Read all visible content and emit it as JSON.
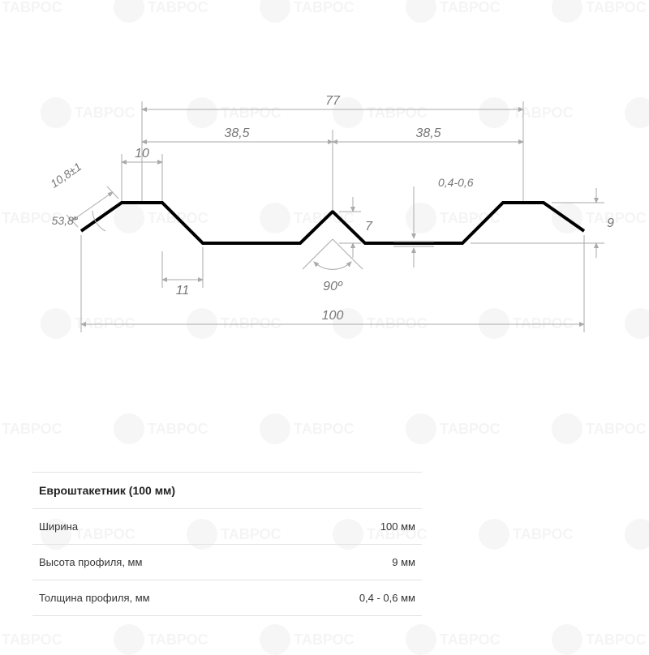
{
  "title": "Евроштакетник (100 мм)",
  "specs": [
    {
      "label": "Ширина",
      "value": "100 мм"
    },
    {
      "label": "Высота профиля, мм",
      "value": "9 мм"
    },
    {
      "label": "Толщина профиля, мм",
      "value": "0,4 - 0,6 мм"
    }
  ],
  "dimensions": {
    "total_width": "100",
    "top_span": "77",
    "half_span_left": "38,5",
    "half_span_right": "38,5",
    "flat_top": "10",
    "lower_offset": "11",
    "edge_len": "10,8±1",
    "edge_angle": "53,8°",
    "center_peak_h": "7",
    "center_angle": "90º",
    "profile_h": "9",
    "thickness": "0,4-0,6"
  },
  "style": {
    "profile_color": "#000000",
    "dim_color": "#aaaaaa",
    "dim_text_color": "#777777",
    "background": "#ffffff",
    "table_border": "#e3e3e3",
    "watermark_text": "ТАВРОС"
  },
  "diagram_type": "technical-profile-cross-section"
}
